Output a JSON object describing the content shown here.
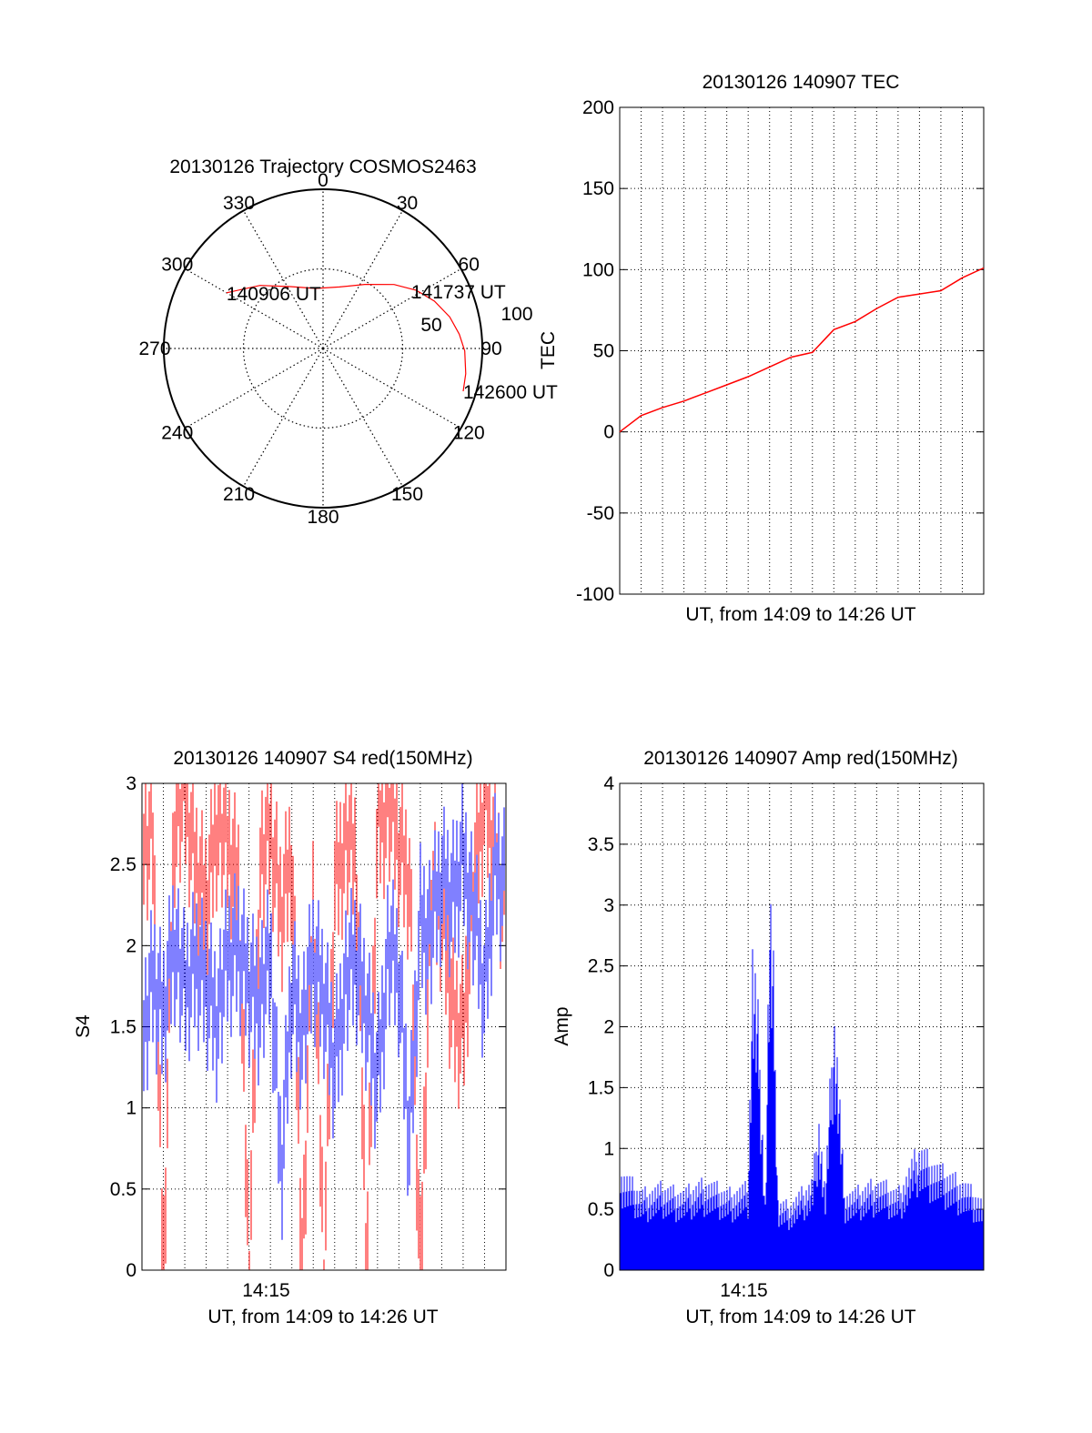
{
  "colors": {
    "red": "#ff0000",
    "blue": "#0000ff",
    "axis": "#000000",
    "grid": "#000000"
  },
  "chart_data": [
    {
      "type": "polar",
      "title": "20130126 Trajectory COSMOS2463",
      "azimuth_labels": [
        "0",
        "30",
        "60",
        "90",
        "120",
        "150",
        "180",
        "210",
        "240",
        "270",
        "300",
        "330"
      ],
      "radius_label": "50",
      "radius_max": 100,
      "radius_max_label": "100",
      "grid": true,
      "series": [
        {
          "color": "red",
          "points": [
            {
              "az": 300,
              "r": 70
            },
            {
              "az": 315,
              "r": 56
            },
            {
              "az": 332,
              "r": 44
            },
            {
              "az": 353,
              "r": 38
            },
            {
              "az": 15,
              "r": 40
            },
            {
              "az": 33,
              "r": 48
            },
            {
              "az": 48,
              "r": 60
            },
            {
              "az": 58,
              "r": 69
            },
            {
              "az": 67,
              "r": 76
            },
            {
              "az": 76,
              "r": 82
            },
            {
              "az": 84,
              "r": 86
            },
            {
              "az": 91,
              "r": 89
            },
            {
              "az": 100,
              "r": 91
            },
            {
              "az": 107,
              "r": 92
            }
          ]
        }
      ],
      "annotations": [
        {
          "text": "140906 UT",
          "az": 300,
          "r": 70
        },
        {
          "text": "141737 UT",
          "az": 57,
          "r": 66
        },
        {
          "text": "142600 UT",
          "az": 107,
          "r": 92
        }
      ]
    },
    {
      "type": "line",
      "title": "20130126 140907 TEC",
      "xlabel": "UT, from 14:09 to 14:26 UT",
      "ylabel": "TEC",
      "ylim": [
        -100,
        200
      ],
      "yticks": [
        "-100",
        "-50",
        "0",
        "50",
        "100",
        "150",
        "200"
      ],
      "grid": true,
      "series": [
        {
          "color": "red",
          "x_minutes": [
            0,
            1,
            2,
            3,
            4,
            5,
            6,
            7,
            8,
            9,
            9.5,
            10,
            11,
            12,
            13,
            14,
            15,
            16,
            17
          ],
          "values": [
            0,
            10,
            15,
            19,
            24,
            29,
            34,
            40,
            46,
            49,
            56,
            63,
            68,
            76,
            83,
            85,
            87,
            95,
            101
          ]
        }
      ]
    },
    {
      "type": "line",
      "title": "20130126 140907 S4 red(150MHz)",
      "xlabel": "UT, from 14:09 to 14:26 UT",
      "ylabel": "S4",
      "ylim": [
        0,
        3
      ],
      "yticks": [
        "0",
        "0.5",
        "1",
        "1.5",
        "2",
        "2.5",
        "3"
      ],
      "xticks": [
        {
          "label": "14:15",
          "minute": 5.8
        }
      ],
      "grid": true,
      "series": [
        {
          "color": "red",
          "x_minutes": [
            0,
            0.5,
            1,
            1.5,
            2,
            2.5,
            3,
            3.5,
            4,
            4.5,
            5,
            5.5,
            6,
            6.5,
            7,
            7.5,
            8,
            8.5,
            9,
            9.5,
            10,
            10.5,
            11,
            11.5,
            12,
            12.5,
            13,
            13.5,
            14,
            14.5,
            15,
            15.5,
            16,
            16.5,
            17
          ],
          "values": [
            2.6,
            2.7,
            0,
            2.8,
            2.9,
            2.5,
            2.3,
            2.8,
            2.6,
            2.4,
            0,
            2.5,
            2.7,
            2.2,
            2.6,
            0,
            2.3,
            0,
            2.4,
            2.7,
            2.5,
            0,
            2.8,
            2.9,
            2.6,
            2.4,
            0,
            2.3,
            2.2,
            1.6,
            1.5,
            2.4,
            2.9,
            2.6,
            2.2
          ]
        },
        {
          "color": "blue",
          "x_minutes": [
            0,
            0.5,
            1,
            1.5,
            2,
            2.5,
            3,
            3.5,
            4,
            4.5,
            5,
            5.5,
            6,
            6.5,
            7,
            7.5,
            8,
            8.5,
            9,
            9.5,
            10,
            10.5,
            11,
            11.5,
            12,
            12.5,
            13,
            13.5,
            14,
            14.5,
            15,
            15.5,
            16,
            16.5,
            17
          ],
          "values": [
            1.4,
            1.8,
            1.6,
            2.1,
            1.7,
            1.9,
            1.8,
            1.6,
            1.9,
            2.0,
            1.8,
            1.7,
            1.9,
            0.6,
            1.8,
            1.5,
            1.9,
            1.7,
            1.3,
            1.8,
            1.9,
            1.6,
            1.2,
            2.0,
            1.8,
            0.8,
            2.2,
            2.1,
            2.4,
            2.3,
            2.6,
            2.2,
            1.7,
            2.5,
            2.4
          ]
        }
      ]
    },
    {
      "type": "area",
      "title": "20130126 140907 Amp red(150MHz)",
      "xlabel": "UT, from 14:09 to 14:26 UT",
      "ylabel": "Amp",
      "ylim": [
        0,
        4
      ],
      "yticks": [
        "0",
        "0.5",
        "1",
        "1.5",
        "2",
        "2.5",
        "3",
        "3.5",
        "4"
      ],
      "xticks": [
        {
          "label": "14:15",
          "minute": 5.8
        }
      ],
      "grid": true,
      "series": [
        {
          "color": "blue",
          "x_minutes": [
            0,
            1,
            2,
            3,
            4,
            5,
            6,
            6.2,
            6.5,
            6.8,
            7,
            7.2,
            7.4,
            8,
            9,
            9.3,
            9.6,
            10,
            10.2,
            10.5,
            11,
            12,
            13,
            14,
            15,
            16,
            17
          ],
          "values": [
            0.9,
            0.7,
            0.75,
            0.7,
            0.8,
            0.7,
            0.75,
            2.9,
            2.2,
            0.6,
            3.35,
            2.6,
            0.6,
            0.6,
            0.8,
            1.4,
            0.7,
            2.35,
            1.8,
            0.7,
            0.7,
            0.8,
            0.7,
            1.1,
            0.9,
            0.8,
            0.6
          ]
        }
      ]
    }
  ]
}
